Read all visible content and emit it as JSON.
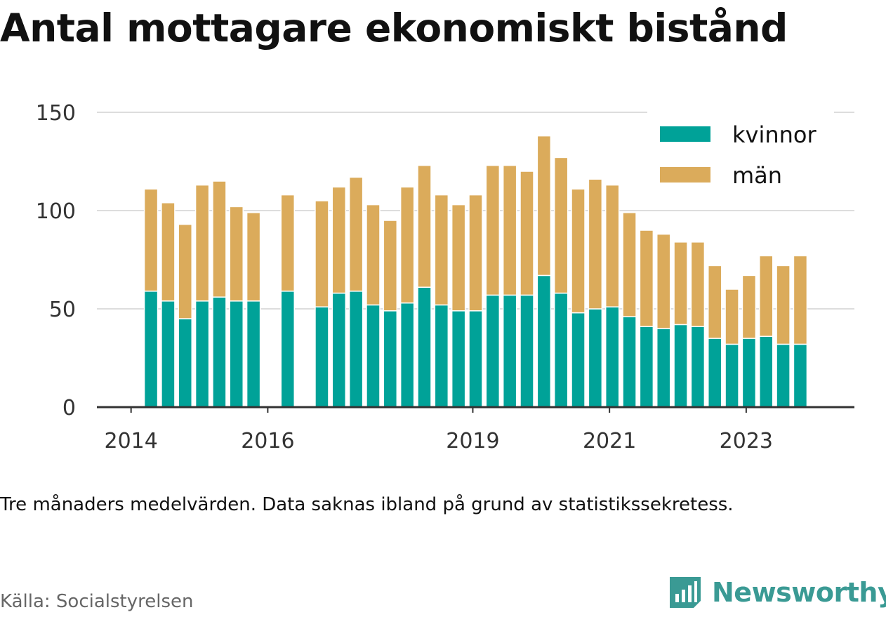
{
  "title": "Antal mottagare ekonomiskt bistånd",
  "note": "Tre månaders medelvärden. Data saknas ibland på grund av statistikssekretess.",
  "source": "Källa: Socialstyrelsen",
  "brand": {
    "name": "Newsworthy",
    "icon": "newsworthy-logo-icon",
    "color": "#3a9a94"
  },
  "colors": {
    "kvinnor": "#00a298",
    "man": "#dbab5b",
    "grid": "#dddddd",
    "axis": "#333333"
  },
  "chart_data": {
    "type": "bar",
    "stacked": true,
    "ylim": [
      0,
      150
    ],
    "yticks": [
      0,
      50,
      100,
      150
    ],
    "xticks": [
      "2014",
      "2016",
      "2019",
      "2021",
      "2023"
    ],
    "xtick_dates": [
      "2014-01-01",
      "2016-01-01",
      "2019-01-01",
      "2021-01-01",
      "2023-01-01"
    ],
    "xlim": [
      "2013-07-01",
      "2024-08-01"
    ],
    "grid": true,
    "legend_position": "top-right",
    "x": [
      "2014-04",
      "2014-07",
      "2014-10",
      "2015-01",
      "2015-04",
      "2015-07",
      "2015-10",
      "2016-04",
      "2016-10",
      "2017-01",
      "2017-04",
      "2017-07",
      "2017-10",
      "2018-01",
      "2018-04",
      "2018-07",
      "2018-10",
      "2019-01",
      "2019-04",
      "2019-07",
      "2019-10",
      "2020-01",
      "2020-04",
      "2020-07",
      "2020-10",
      "2021-01",
      "2021-04",
      "2021-07",
      "2021-10",
      "2022-01",
      "2022-04",
      "2022-07",
      "2022-10",
      "2023-01",
      "2023-04",
      "2023-07",
      "2023-10"
    ],
    "series": [
      {
        "name": "kvinnor",
        "values": [
          59,
          54,
          45,
          54,
          56,
          54,
          54,
          59,
          51,
          58,
          59,
          52,
          49,
          53,
          61,
          52,
          49,
          49,
          57,
          57,
          57,
          67,
          58,
          48,
          50,
          51,
          46,
          41,
          40,
          42,
          41,
          35,
          32,
          35,
          36,
          32,
          32
        ]
      },
      {
        "name": "män",
        "values": [
          52,
          50,
          48,
          59,
          59,
          48,
          45,
          49,
          54,
          54,
          58,
          51,
          46,
          59,
          62,
          56,
          54,
          59,
          66,
          66,
          63,
          71,
          69,
          63,
          66,
          62,
          53,
          49,
          48,
          42,
          43,
          37,
          28,
          32,
          41,
          40,
          45
        ]
      }
    ]
  }
}
